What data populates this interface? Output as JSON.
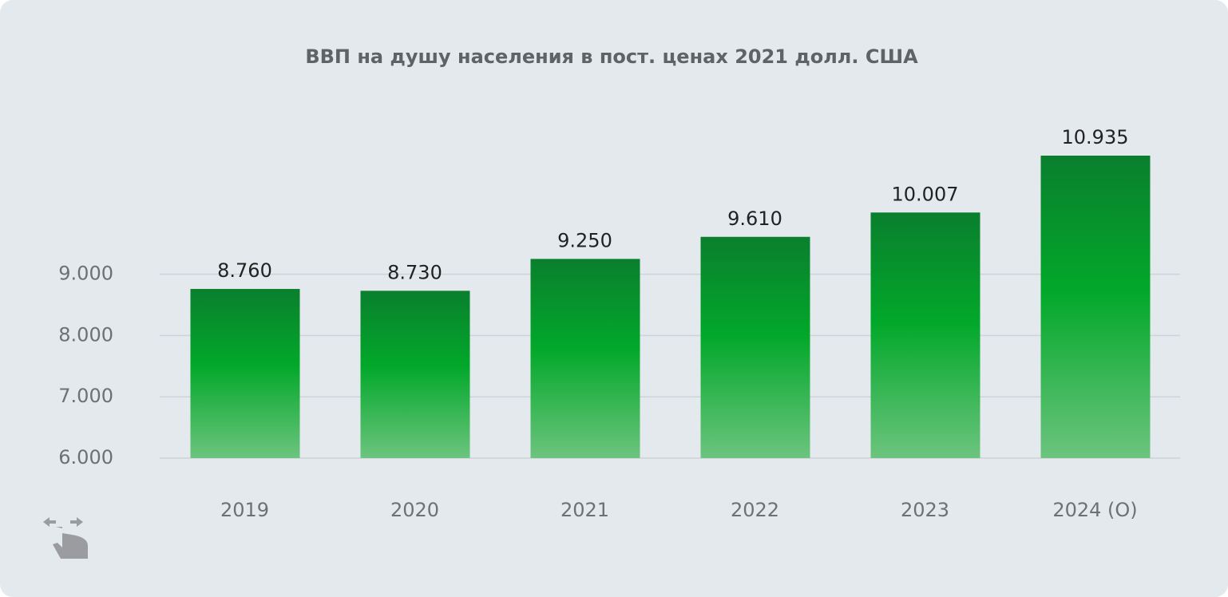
{
  "chart_data": {
    "type": "bar",
    "title": "ВВП на душу населения в пост. ценах 2021 долл. США",
    "categories": [
      "2019",
      "2020",
      "2021",
      "2022",
      "2023",
      "2024 (O)"
    ],
    "values": [
      8760,
      8730,
      9250,
      9610,
      10007,
      10935
    ],
    "value_labels": [
      "8.760",
      "8.730",
      "9.250",
      "9.610",
      "10.007",
      "10.935"
    ],
    "color": "#02a82a",
    "ylim": [
      6000,
      11000
    ],
    "yticks": [
      {
        "value": 6000,
        "label": "6.000"
      },
      {
        "value": 7000,
        "label": "7.000"
      },
      {
        "value": 8000,
        "label": "8.000"
      },
      {
        "value": 9000,
        "label": "9.000"
      }
    ],
    "grid": true
  }
}
